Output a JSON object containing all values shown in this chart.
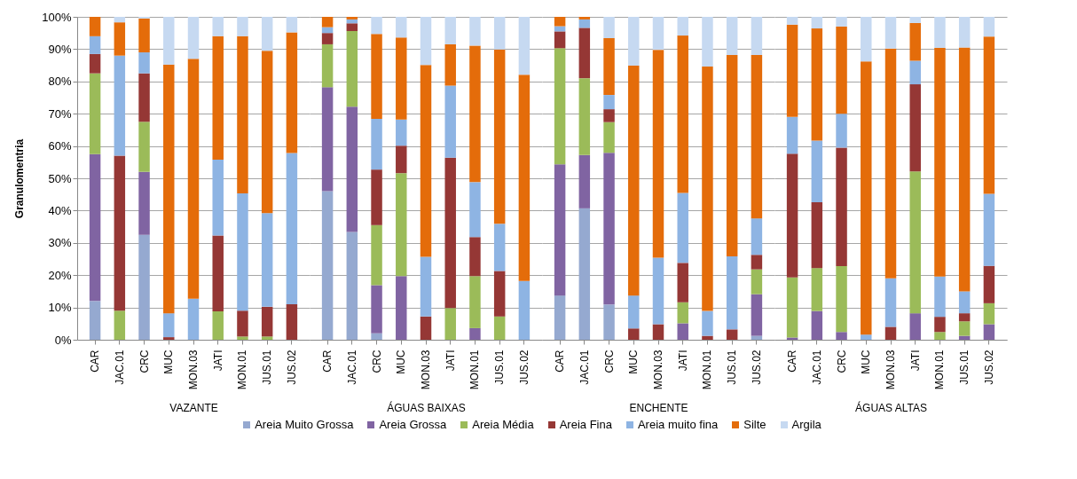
{
  "chart_data": [
    {
      "type": "bar",
      "stacked": true,
      "xlabel": "VAZANTE",
      "ylabel": "Granulomentria",
      "categories": [
        "CAR",
        "JAC.01",
        "CRC",
        "MUC",
        "MON.03",
        "JATI",
        "MON.01",
        "JUS.01",
        "JUS.02"
      ],
      "ylim": [
        0,
        100
      ],
      "yticks": [
        {
          "value": 0,
          "label": "0%"
        },
        {
          "value": 10,
          "label": "10%"
        },
        {
          "value": 20,
          "label": "20%"
        },
        {
          "value": 30,
          "label": "30%"
        },
        {
          "value": 40,
          "label": "40%"
        },
        {
          "value": 50,
          "label": "50%"
        },
        {
          "value": 60,
          "label": "60%"
        },
        {
          "value": 70,
          "label": "70%"
        },
        {
          "value": 80,
          "label": "80%"
        },
        {
          "value": 90,
          "label": "90%"
        },
        {
          "value": 100,
          "label": "100%"
        }
      ],
      "grid": "y",
      "legend": "bottom",
      "series": [
        {
          "name": "Areia Muito Grossa",
          "color": "#95a9d0",
          "values": [
            12,
            0,
            32.5,
            0,
            0,
            0,
            0,
            0,
            0
          ]
        },
        {
          "name": "Areia Grossa",
          "color": "#8064a2",
          "values": [
            45.5,
            0,
            19.5,
            0,
            0,
            0,
            0,
            0,
            0
          ]
        },
        {
          "name": "Areia Média",
          "color": "#9bbb59",
          "values": [
            25,
            9,
            15.5,
            0,
            0,
            8.8,
            1,
            1,
            0
          ]
        },
        {
          "name": "Areia Fina",
          "color": "#953735",
          "values": [
            6,
            48,
            15,
            0.8,
            0,
            23.5,
            8,
            9.2,
            11
          ]
        },
        {
          "name": "Areia muito fina",
          "color": "#8eb4e3",
          "values": [
            5.5,
            31,
            6.5,
            7.4,
            12.7,
            23.5,
            36.3,
            29,
            46.8
          ]
        },
        {
          "name": "Silte",
          "color": "#e46c0a",
          "values": [
            6,
            10.3,
            10.5,
            77,
            74.3,
            38.2,
            48.7,
            50.3,
            37.4
          ]
        },
        {
          "name": "Argila",
          "color": "#c6d9f1",
          "values": [
            0,
            1.7,
            0.5,
            14.8,
            13,
            6,
            6,
            10.5,
            4.8
          ]
        }
      ]
    },
    {
      "type": "bar",
      "stacked": true,
      "xlabel": "ÁGUAS BAIXAS",
      "tick_labels": "x",
      "categories": [
        "CAR",
        "JAC.01",
        "CRC",
        "MUC",
        "MON.03",
        "JATI",
        "MON.01",
        "JUS.01",
        "JUS.02"
      ],
      "ylim": [
        0,
        100
      ],
      "yticks": [
        0,
        10,
        20,
        30,
        40,
        50,
        60,
        70,
        80,
        90,
        100
      ],
      "grid": "y",
      "series": [
        {
          "name": "Areia Muito Grossa",
          "color": "#95a9d0",
          "values": [
            46,
            33.4,
            2,
            0,
            0,
            0,
            0,
            0,
            0
          ]
        },
        {
          "name": "Areia Grossa",
          "color": "#8064a2",
          "values": [
            32.2,
            38.8,
            14.9,
            19.7,
            0,
            0,
            3.6,
            0,
            0
          ]
        },
        {
          "name": "Areia Média",
          "color": "#9bbb59",
          "values": [
            13.3,
            23.4,
            18.6,
            31.9,
            0,
            9.8,
            16.1,
            7.2,
            0
          ]
        },
        {
          "name": "Areia Fina",
          "color": "#953735",
          "values": [
            3.5,
            2.4,
            17.2,
            8.5,
            7.2,
            46.6,
            12.1,
            14.1,
            0
          ]
        },
        {
          "name": "Areia muito fina",
          "color": "#8eb4e3",
          "values": [
            1.8,
            1.2,
            15.7,
            8.1,
            18.5,
            22.3,
            17,
            14.6,
            18.2
          ]
        },
        {
          "name": "Silte",
          "color": "#e46c0a",
          "values": [
            3.2,
            0.8,
            26.3,
            25.4,
            59.4,
            12.8,
            42.3,
            54,
            63.9
          ]
        },
        {
          "name": "Argila",
          "color": "#c6d9f1",
          "values": [
            0,
            0,
            5.3,
            6.4,
            14.9,
            8.5,
            8.9,
            10.1,
            17.9
          ]
        }
      ]
    },
    {
      "type": "bar",
      "stacked": true,
      "xlabel": "ENCHENTE",
      "tick_labels": "x",
      "categories": [
        "CAR",
        "JAC.01",
        "CRC",
        "MUC",
        "MON.03",
        "JATI",
        "MON.01",
        "JUS.01",
        "JUS.02"
      ],
      "ylim": [
        0,
        100
      ],
      "yticks": [
        0,
        10,
        20,
        30,
        40,
        50,
        60,
        70,
        80,
        90,
        100
      ],
      "grid": "y",
      "series": [
        {
          "name": "Areia Muito Grossa",
          "color": "#95a9d0",
          "values": [
            13.7,
            40.7,
            10.9,
            0,
            0,
            0,
            0,
            0,
            1.2
          ]
        },
        {
          "name": "Areia Grossa",
          "color": "#8064a2",
          "values": [
            40.6,
            16.5,
            47,
            0,
            0,
            5.1,
            0,
            0,
            12.9
          ]
        },
        {
          "name": "Areia Média",
          "color": "#9bbb59",
          "values": [
            36,
            23.8,
            9.5,
            0,
            0,
            6.5,
            0,
            0,
            7.7
          ]
        },
        {
          "name": "Areia Fina",
          "color": "#953735",
          "values": [
            5.2,
            15.6,
            4,
            3.5,
            4.8,
            12.2,
            1.2,
            3.2,
            4.5
          ]
        },
        {
          "name": "Areia muito fina",
          "color": "#8eb4e3",
          "values": [
            1.6,
            2.6,
            4.4,
            10.2,
            20.6,
            21.7,
            7.7,
            22.6,
            11.3
          ]
        },
        {
          "name": "Silte",
          "color": "#e46c0a",
          "values": [
            2.9,
            0.8,
            17.6,
            71.2,
            64.4,
            48.7,
            75.7,
            62.4,
            50.6
          ]
        },
        {
          "name": "Argila",
          "color": "#c6d9f1",
          "values": [
            0,
            0,
            6.6,
            15.1,
            10.2,
            5.8,
            15.4,
            11.8,
            11.8
          ]
        }
      ]
    },
    {
      "type": "bar",
      "stacked": true,
      "xlabel": "ÁGUAS ALTAS",
      "tick_labels": "x",
      "categories": [
        "CAR",
        "JAC.01",
        "CRC",
        "MUC",
        "MON.03",
        "JATI",
        "MON.01",
        "JUS.01",
        "JUS.02"
      ],
      "ylim": [
        0,
        100
      ],
      "yticks": [
        0,
        10,
        20,
        30,
        40,
        50,
        60,
        70,
        80,
        90,
        100
      ],
      "grid": "y",
      "series": [
        {
          "name": "Areia Muito Grossa",
          "color": "#95a9d0",
          "values": [
            0,
            0,
            0,
            0,
            0,
            0,
            0,
            0,
            0
          ]
        },
        {
          "name": "Areia Grossa",
          "color": "#8064a2",
          "values": [
            0.7,
            8.9,
            2.4,
            0,
            0,
            8.2,
            0,
            1.2,
            4.8
          ]
        },
        {
          "name": "Areia Média",
          "color": "#9bbb59",
          "values": [
            18.6,
            13.3,
            20.4,
            0,
            0,
            43.9,
            2.4,
            4.5,
            6.5
          ]
        },
        {
          "name": "Areia Fina",
          "color": "#953735",
          "values": [
            38.3,
            20.4,
            36.7,
            0,
            4,
            27,
            4.7,
            2.5,
            11.6
          ]
        },
        {
          "name": "Areia muito fina",
          "color": "#8eb4e3",
          "values": [
            11.4,
            19.1,
            10.5,
            1.6,
            15,
            7.3,
            12.5,
            6.8,
            22.3
          ]
        },
        {
          "name": "Silte",
          "color": "#e46c0a",
          "values": [
            28.6,
            34.7,
            27,
            84.6,
            71.2,
            11.7,
            70.8,
            75.5,
            48.7
          ]
        },
        {
          "name": "Argila",
          "color": "#c6d9f1",
          "values": [
            2.4,
            3.6,
            3,
            13.8,
            9.8,
            1.9,
            9.6,
            9.5,
            6.1
          ]
        }
      ]
    }
  ]
}
